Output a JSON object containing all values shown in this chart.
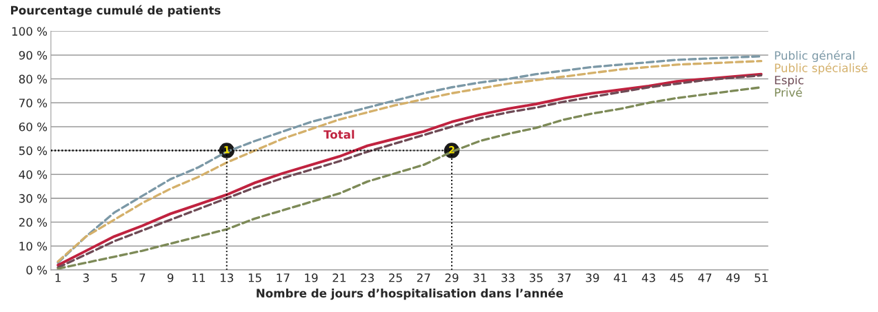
{
  "chart_data": {
    "type": "line",
    "ylabel": "Pourcentage cumulé de patients",
    "xlabel": "Nombre de jours d’hospitalisation dans l’année",
    "x": [
      1,
      3,
      5,
      7,
      9,
      11,
      13,
      15,
      17,
      19,
      21,
      23,
      25,
      27,
      29,
      31,
      33,
      35,
      37,
      39,
      41,
      43,
      45,
      47,
      49,
      51
    ],
    "xlim": [
      0.5,
      51.5
    ],
    "xticks": [
      1,
      3,
      5,
      7,
      9,
      11,
      13,
      15,
      17,
      19,
      21,
      23,
      25,
      27,
      29,
      31,
      33,
      35,
      37,
      39,
      41,
      43,
      45,
      47,
      49,
      51
    ],
    "ylim": [
      0,
      100
    ],
    "yticks": [
      {
        "value": 0,
        "label": "0 %"
      },
      {
        "value": 10,
        "label": "10 %"
      },
      {
        "value": 20,
        "label": "20 %"
      },
      {
        "value": 30,
        "label": "30 %"
      },
      {
        "value": 40,
        "label": "40 %"
      },
      {
        "value": 50,
        "label": "50 %"
      },
      {
        "value": 60,
        "label": "60 %"
      },
      {
        "value": 70,
        "label": "70 %"
      },
      {
        "value": 80,
        "label": "80 %"
      },
      {
        "value": 90,
        "label": "90 %"
      },
      {
        "value": 100,
        "label": "100 %"
      }
    ],
    "grid": "y",
    "legend": false,
    "marker": "none",
    "series": [
      {
        "name": "Public général",
        "color": "#7b98a6",
        "line_style": "dashed",
        "values": [
          3,
          14,
          24,
          31,
          38,
          43,
          49.5,
          54,
          58,
          62,
          65,
          68,
          71,
          74,
          76.5,
          78.5,
          80,
          82,
          83.5,
          85,
          86,
          87,
          88,
          88.5,
          89,
          89.5
        ]
      },
      {
        "name": "Public spécialisé",
        "color": "#d4b06a",
        "line_style": "dashed",
        "values": [
          3.5,
          14,
          21,
          28,
          34,
          39,
          45,
          50,
          55,
          59,
          63,
          66,
          69,
          71.5,
          74,
          76,
          78,
          79.5,
          81,
          82.5,
          84,
          85,
          86,
          86.5,
          87,
          87.5
        ]
      },
      {
        "name": "Total",
        "color": "#c0223f",
        "line_style": "solid",
        "values": [
          2,
          8,
          14,
          18.5,
          23.5,
          27.5,
          31.5,
          36.5,
          40.5,
          44,
          47.5,
          52,
          55,
          58,
          62,
          65,
          67.5,
          69.5,
          72,
          74,
          75.5,
          77,
          79,
          80,
          81,
          82
        ]
      },
      {
        "name": "Espic",
        "color": "#6e4a55",
        "line_style": "dashed",
        "values": [
          1,
          6.5,
          12,
          16.5,
          21,
          25.5,
          30,
          34.5,
          38.5,
          42,
          45.5,
          49.5,
          53,
          56.5,
          60,
          63.5,
          66,
          68,
          70.5,
          72.5,
          74.5,
          76.5,
          78,
          79.5,
          80.5,
          81.5
        ]
      },
      {
        "name": "Privé",
        "color": "#7d8a57",
        "line_style": "dashed",
        "values": [
          0.5,
          3,
          5.5,
          8,
          11,
          14,
          17,
          21.5,
          25,
          28.5,
          32,
          37,
          40.5,
          44,
          49.5,
          54,
          57,
          59.5,
          63,
          65.5,
          67.5,
          70,
          72,
          73.5,
          75,
          76.5
        ]
      }
    ],
    "annotations": [
      {
        "text": "1",
        "x": 13,
        "y": 50
      },
      {
        "text": "2",
        "x": 29,
        "y": 50
      }
    ]
  }
}
